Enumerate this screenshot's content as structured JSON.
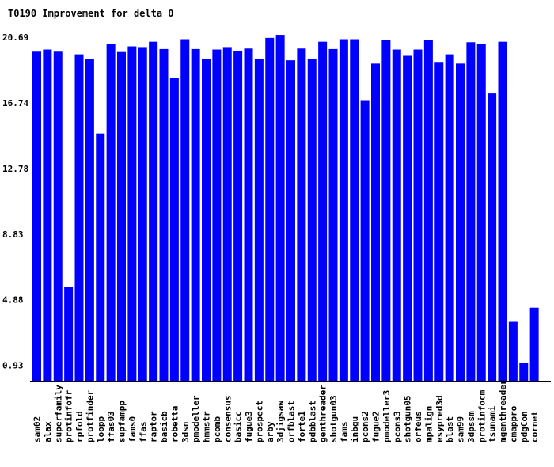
{
  "chart_data": {
    "type": "bar",
    "title": "T0190 Improvement for delta 0",
    "xlabel": "",
    "ylabel": "",
    "ylim": [
      0,
      20.69
    ],
    "yticks": [
      "0.93",
      "4.88",
      "8.83",
      "12.78",
      "16.74",
      "20.69"
    ],
    "grid": false,
    "bar_color": "#0000ff",
    "categories": [
      "sam02",
      "alax",
      "superfamily",
      "protinfofr",
      "rpfold",
      "protfinder",
      "loopp",
      "ffas03",
      "supfampp",
      "fams0",
      "ffas",
      "raptor",
      "basicb",
      "robetta",
      "3dsn",
      "pmodeller",
      "hmmstr",
      "pcomb",
      "consensus",
      "basicc",
      "fugue3",
      "prospect",
      "arby",
      "3djigsaw",
      "orfblast",
      "forte1",
      "pdbblast",
      "genthreader",
      "shotgun03",
      "fams",
      "inbgu",
      "pcons2",
      "fugue2",
      "pmodeller3",
      "pcons3",
      "shotgun05",
      "orfeus",
      "mpalign",
      "esypred3d",
      "blast",
      "sam99",
      "3dpssm",
      "protinfocm",
      "tsunami",
      "mgenthreader",
      "cmappro",
      "pdgCon",
      "cornet"
    ],
    "values": [
      19.82,
      19.95,
      19.82,
      5.64,
      19.66,
      19.39,
      14.89,
      20.3,
      19.8,
      20.14,
      20.05,
      20.42,
      19.98,
      18.23,
      20.57,
      19.98,
      19.39,
      19.95,
      20.05,
      19.88,
      20.01,
      19.39,
      20.65,
      20.83,
      19.3,
      20.01,
      19.39,
      20.42,
      19.98,
      20.57,
      20.57,
      16.9,
      19.1,
      20.51,
      19.95,
      19.57,
      19.95,
      20.51,
      19.2,
      19.66,
      19.1,
      20.39,
      20.3,
      17.3,
      20.42,
      3.55,
      1.05,
      4.4
    ]
  }
}
